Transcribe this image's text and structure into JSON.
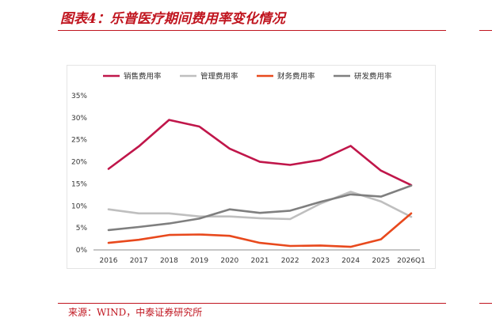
{
  "header": {
    "title": "图表4：乐普医疗期间费用率变化情况"
  },
  "footer": {
    "source": "来源：WIND，中泰证券研究所"
  },
  "chart_data": {
    "type": "line",
    "title": "",
    "xlabel": "",
    "ylabel": "",
    "categories": [
      "2016",
      "2017",
      "2018",
      "2019",
      "2020",
      "2021",
      "2022",
      "2023",
      "2024",
      "2025",
      "2026Q1"
    ],
    "ylim": [
      0,
      35
    ],
    "yticks": [
      0,
      5,
      10,
      15,
      20,
      25,
      30,
      35
    ],
    "ytick_labels": [
      "0%",
      "5%",
      "10%",
      "15%",
      "20%",
      "25%",
      "30%",
      "35%"
    ],
    "grid": false,
    "legend_position": "top",
    "series": [
      {
        "name": "销售费用率",
        "color": "#c0164a",
        "values": [
          18.4,
          23.5,
          29.5,
          28.0,
          23.0,
          20.0,
          19.3,
          20.4,
          23.6,
          18.0,
          14.7
        ]
      },
      {
        "name": "管理费用率",
        "color": "#bfbfbf",
        "values": [
          9.2,
          8.3,
          8.3,
          7.6,
          7.6,
          7.2,
          7.0,
          10.5,
          13.2,
          11.0,
          7.5
        ]
      },
      {
        "name": "财务费用率",
        "color": "#e8491d",
        "values": [
          1.6,
          2.3,
          3.4,
          3.5,
          3.2,
          1.6,
          0.9,
          1.0,
          0.7,
          2.4,
          8.3
        ]
      },
      {
        "name": "研发费用率",
        "color": "#7f7f7f",
        "values": [
          4.5,
          5.2,
          6.0,
          7.1,
          9.2,
          8.4,
          8.9,
          10.9,
          12.6,
          12.1,
          14.6
        ]
      }
    ]
  }
}
